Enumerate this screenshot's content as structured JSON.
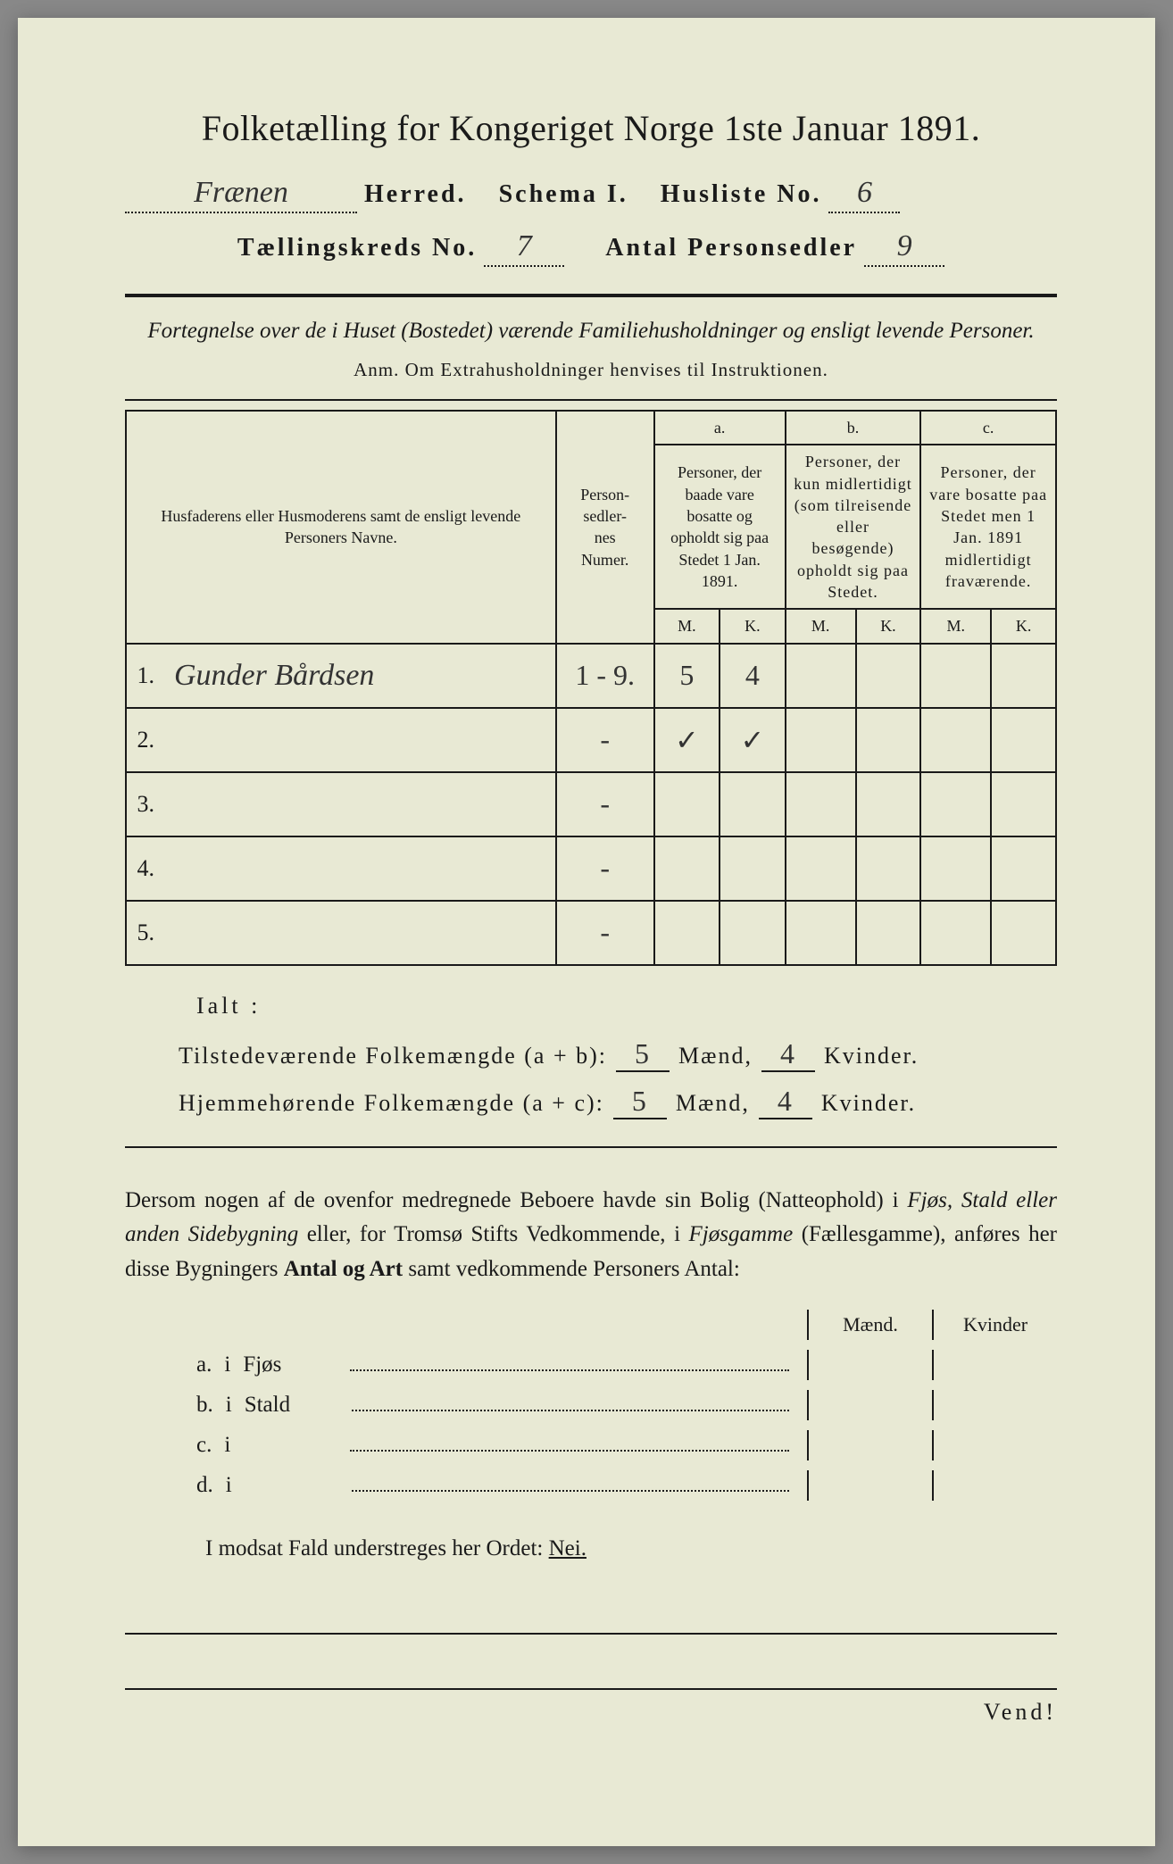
{
  "title": "Folketælling for Kongeriget Norge 1ste Januar 1891.",
  "header": {
    "herred_value": "Frænen",
    "herred_label": "Herred.",
    "schema_label": "Schema I.",
    "husliste_label": "Husliste No.",
    "husliste_value": "6",
    "kreds_label": "Tællingskreds No.",
    "kreds_value": "7",
    "antal_label": "Antal Personsedler",
    "antal_value": "9"
  },
  "subtitle": "Fortegnelse over de i Huset (Bostedet) værende Familiehusholdninger og ensligt levende Personer.",
  "anm": "Anm.  Om Extrahusholdninger henvises til Instruktionen.",
  "table": {
    "col_name": "Husfaderens eller Husmoderens samt de ensligt levende Personers Navne.",
    "col_num": "Person-\nsedler-\nnes\nNumer.",
    "col_a_head": "a.",
    "col_a": "Personer, der baade vare bosatte og opholdt sig paa Stedet 1 Jan. 1891.",
    "col_b_head": "b.",
    "col_b": "Personer, der kun midlertidigt (som tilreisende eller besøgende) opholdt sig paa Stedet.",
    "col_c_head": "c.",
    "col_c": "Personer, der vare bosatte paa Stedet men 1 Jan. 1891 midlertidigt fraværende.",
    "mk_m": "M.",
    "mk_k": "K.",
    "rows": [
      {
        "n": "1.",
        "name": "Gunder Bårdsen",
        "num": "1 - 9.",
        "am": "5",
        "ak": "4",
        "bm": "",
        "bk": "",
        "cm": "",
        "ck": ""
      },
      {
        "n": "2.",
        "name": "",
        "num": "-",
        "am": "✓",
        "ak": "✓",
        "bm": "",
        "bk": "",
        "cm": "",
        "ck": ""
      },
      {
        "n": "3.",
        "name": "",
        "num": "-",
        "am": "",
        "ak": "",
        "bm": "",
        "bk": "",
        "cm": "",
        "ck": ""
      },
      {
        "n": "4.",
        "name": "",
        "num": "-",
        "am": "",
        "ak": "",
        "bm": "",
        "bk": "",
        "cm": "",
        "ck": ""
      },
      {
        "n": "5.",
        "name": "",
        "num": "-",
        "am": "",
        "ak": "",
        "bm": "",
        "bk": "",
        "cm": "",
        "ck": ""
      }
    ]
  },
  "ialt": "Ialt :",
  "totals": {
    "line1_label": "Tilstedeværende Folkemængde (a + b):",
    "line2_label": "Hjemmehørende Folkemængde (a + c):",
    "maend": "Mænd,",
    "kvinder": "Kvinder.",
    "v1_m": "5",
    "v1_k": "4",
    "v2_m": "5",
    "v2_k": "4"
  },
  "para": "Dersom nogen af de ovenfor medregnede Beboere havde sin Bolig (Natteophold) i Fjøs, Stald eller anden Sidebygning eller, for Tromsø Stifts Vedkommende, i Fjøsgamme (Fællesgamme), anføres her disse Bygningers Antal og Art samt vedkommende Personers Antal:",
  "mk_labels": {
    "m": "Mænd.",
    "k": "Kvinder"
  },
  "buildings": [
    {
      "letter": "a.",
      "i": "i",
      "label": "Fjøs"
    },
    {
      "letter": "b.",
      "i": "i",
      "label": "Stald"
    },
    {
      "letter": "c.",
      "i": "i",
      "label": ""
    },
    {
      "letter": "d.",
      "i": "i",
      "label": ""
    }
  ],
  "nei_line_pre": "I modsat Fald understreges her Ordet:",
  "nei": "Nei.",
  "vend": "Vend!",
  "colors": {
    "paper": "#e8e9d4",
    "ink": "#1a1a1a",
    "handwriting": "#333333"
  }
}
